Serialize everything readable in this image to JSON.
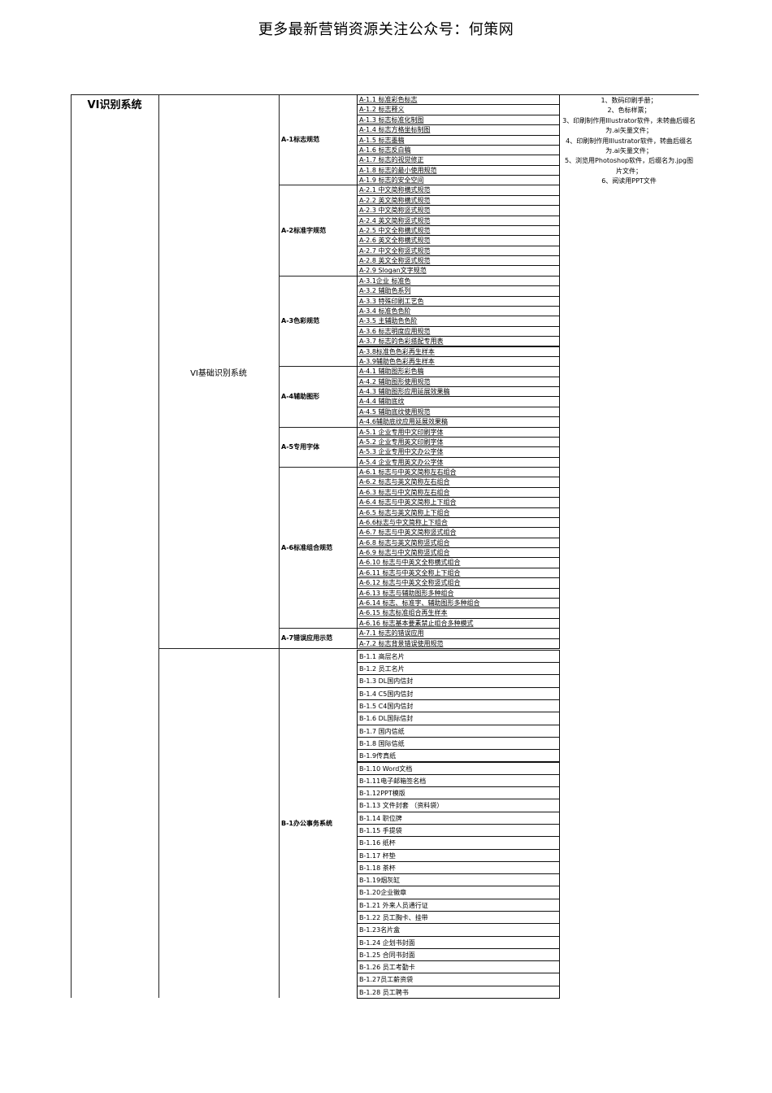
{
  "header": {
    "title": "更多最新营销资源关注公众号：何策网"
  },
  "table": {
    "system": "VI识别系统",
    "subsystem_a": "VI基础识别系统",
    "notes": [
      "1、数码印刷手册；",
      "2、色标样票；",
      "3、印刷制作用Illustrator软件，未转曲后缀名为.ai矢量文件；",
      "4、印刷制作用Illustrator软件，转曲后缀名为.ai矢量文件；",
      "5、浏览用Photoshop软件，后缀名为.jpg图片文件；",
      "6、阅读用PPT文件"
    ],
    "groups_a": [
      {
        "name": "A-1标志规范",
        "items": [
          "A-1.1 标准彩色标志",
          "A-1.2 标志释义",
          "A-1.3 标志标准化制图",
          "A-1.4 标志方格坐标制图",
          "A-1.5 标志墨稿",
          "A-1.6 标志反白稿",
          "A-1.7 标志的视觉修正",
          "A-1.8 标志的最小使用规范",
          "A-1.9 标志的安全空间"
        ]
      },
      {
        "name": "A-2标准字规范",
        "items": [
          "A-2.1 中文简称横式规范",
          "A-2.2 英文简称横式规范",
          "A-2.3 中文简称竖式规范",
          "A-2.4 英文简称竖式规范",
          "A-2.5 中文全称横式规范",
          "A-2.6 英文全称横式规范",
          "A-2.7 中文全称竖式规范",
          "A-2.8 英文全称竖式规范",
          "A-2.9 Slogan文字规范"
        ]
      },
      {
        "name": "A-3色彩规范",
        "items": [
          "A-3.1企业 标准色",
          "A-3.2 辅助色系列",
          "A-3.3 特殊印刷工艺色",
          "A-3.4 标准色色阶",
          "A-3.5 主辅助色色阶",
          "A-3.6 标志明度应用规范",
          "A-3.7 标志的色彩搭配专用表",
          "A-3.8标准色色彩再生样本",
          "A-3.9辅助色色彩再生样本"
        ]
      },
      {
        "name": "A-4辅助图形",
        "items": [
          "A-4.1 辅助图形彩色稿",
          "A-4.2 辅助图形使用规范",
          "A-4.3 辅助图形应用延展效果稿",
          "A-4.4 辅助底纹",
          "A-4.5 辅助底纹使用规范",
          "A-4.6辅助底纹应用延展效果稿"
        ]
      },
      {
        "name": "A-5专用字体",
        "items": [
          "A-5.1 企业专用中文印刷字体",
          "A-5.2 企业专用英文印刷字体",
          "A-5.3 企业专用中文办公字体",
          "A-5.4 企业专用英文办公字体"
        ]
      },
      {
        "name": "A-6标准组合规范",
        "items": [
          "A-6.1 标志与中英文简称左右组合",
          "A-6.2 标志与英文简称左右组合",
          "A-6.3 标志与中文简称左右组合",
          "A-6.4 标志与中英文简称上下组合",
          "A-6.5 标志与英文简称上下组合",
          "A-6.6标志与中文简称上下组合",
          "A-6.7 标志与中英文简称竖式组合",
          "A-6.8 标志与英文简称竖式组合",
          "A-6.9 标志与中文简称竖式组合",
          "A-6.10 标志与中英文全称横式组合",
          "A-6.11 标志与中英文全称上下组合",
          "A-6.12 标志与中英文全称竖式组合",
          "A-6.13 标志与辅助图形多种组合",
          "A-6.14 标志、标准字、辅助图形多种组合",
          "A-6.15 标志标准组合再生样本",
          "A-6.16 标志基本要素禁止组合多种模式"
        ]
      },
      {
        "name": "A-7错误应用示范",
        "items": [
          "A-7.1 标志的错误应用",
          "A-7.2 标志背景错误使用规范"
        ]
      }
    ],
    "groups_b": [
      {
        "name": "B-1办公事务系统",
        "items": [
          "B-1.1 高层名片",
          "B-1.2 员工名片",
          "B-1.3 DL国内信封",
          "B-1.4 C5国内信封",
          "B-1.5 C4国内信封",
          "B-1.6 DL国际信封",
          "B-1.7 国内信纸",
          "B-1.8 国际信纸",
          "B-1.9传真纸",
          "B-1.10 Word文档",
          "B-1.11电子邮箱签名档",
          "B-1.12PPT模版",
          "B-1.13 文件封套 （资料袋）",
          "B-1.14 职位牌",
          "B-1.15 手提袋",
          "B-1.16 纸杯",
          "B-1.17 杯垫",
          "B-1.18 茶杯",
          "B-1.19烟灰缸",
          "B-1.20企业徽章",
          "B-1.21 外来人员通行证",
          "B-1.22 员工胸卡、挂带",
          "B-1.23名片盒",
          "B-1.24 企划书封面",
          "B-1.25 合同书封面",
          "B-1.26 员工考勤卡",
          "B-1.27员工薪资袋",
          "B-1.28 员工聘书"
        ]
      }
    ]
  }
}
